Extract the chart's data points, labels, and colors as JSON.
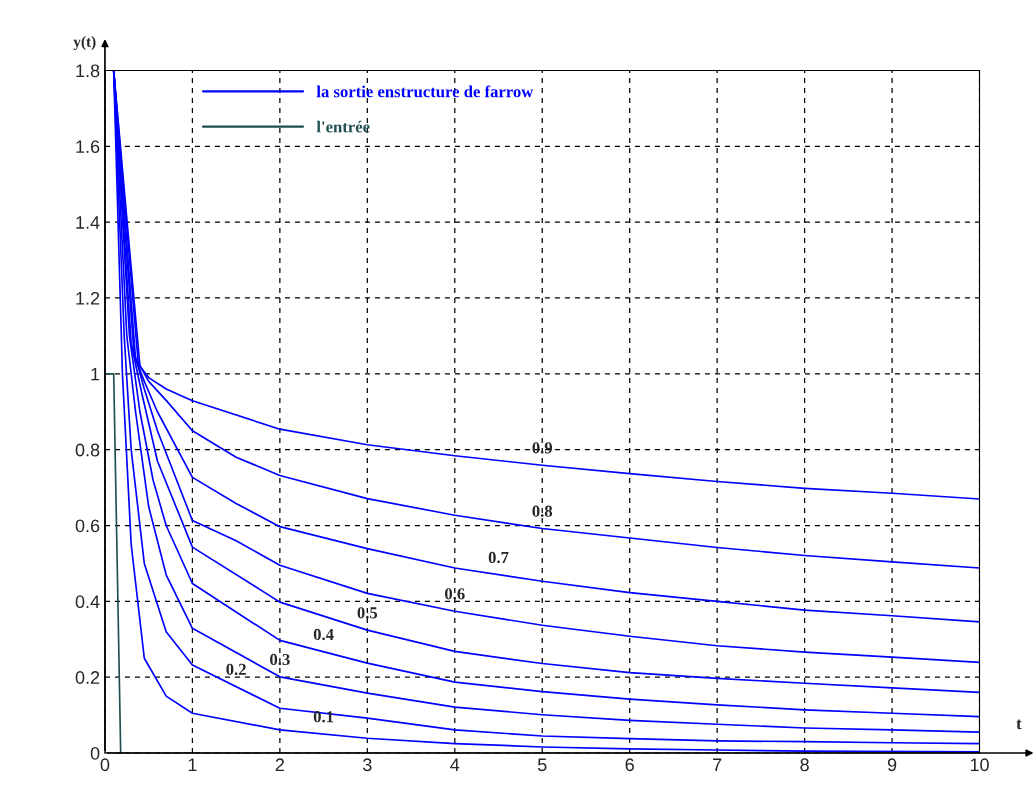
{
  "chart_data": {
    "type": "line",
    "xlabel": "t",
    "ylabel": "y(t)",
    "xlim": [
      0,
      10
    ],
    "ylim": [
      0,
      1.8
    ],
    "xticks": [
      0,
      1,
      2,
      3,
      4,
      5,
      6,
      7,
      8,
      9,
      10
    ],
    "yticks": [
      0,
      0.2,
      0.4,
      0.6,
      0.8,
      1,
      1.2,
      1.4,
      1.6,
      1.8
    ],
    "grid": true,
    "line_style": "solid",
    "legend": "top left",
    "series": [
      {
        "name": "la sortie enstructure de farrow",
        "color": "#0000ff",
        "x": [
          0.1,
          0.4,
          0.5,
          0.7,
          1,
          2,
          3,
          4,
          5,
          6,
          7,
          8,
          9,
          10
        ],
        "values": [
          1.8,
          1.02,
          0.99,
          0.96,
          0.929,
          0.854,
          0.813,
          0.784,
          0.759,
          0.737,
          0.716,
          0.698,
          0.685,
          0.67
        ]
      },
      {
        "color": "#0000ff",
        "x": [
          0.1,
          0.38,
          0.5,
          0.7,
          1,
          1.5,
          2,
          3,
          4,
          5,
          6,
          7,
          8,
          9,
          10
        ],
        "values": [
          1.8,
          1.03,
          0.98,
          0.93,
          0.85,
          0.78,
          0.732,
          0.671,
          0.627,
          0.592,
          0.567,
          0.542,
          0.521,
          0.504,
          0.488
        ]
      },
      {
        "color": "#0000ff",
        "x": [
          0.1,
          0.35,
          0.45,
          0.6,
          1,
          1.5,
          2,
          3,
          4,
          5,
          6,
          7,
          8,
          9,
          10
        ],
        "values": [
          1.8,
          1.04,
          0.98,
          0.9,
          0.727,
          0.658,
          0.597,
          0.539,
          0.488,
          0.453,
          0.423,
          0.4,
          0.377,
          0.362,
          0.346
        ]
      },
      {
        "color": "#0000ff",
        "x": [
          0.1,
          0.33,
          0.45,
          0.6,
          1,
          1.5,
          2,
          3,
          4,
          5,
          6,
          7,
          8,
          9,
          10
        ],
        "values": [
          1.8,
          1.06,
          0.96,
          0.85,
          0.613,
          0.56,
          0.495,
          0.421,
          0.374,
          0.337,
          0.308,
          0.283,
          0.266,
          0.253,
          0.239
        ]
      },
      {
        "color": "#0000ff",
        "x": [
          0.1,
          0.3,
          0.42,
          0.6,
          1,
          2,
          3,
          4,
          5,
          6,
          7,
          8,
          9,
          10
        ],
        "values": [
          1.8,
          1.08,
          0.95,
          0.77,
          0.543,
          0.398,
          0.324,
          0.268,
          0.236,
          0.212,
          0.197,
          0.184,
          0.172,
          0.16
        ]
      },
      {
        "color": "#0000ff",
        "x": [
          0.1,
          0.28,
          0.4,
          0.55,
          0.7,
          1,
          2,
          3,
          4,
          5,
          6,
          7,
          8,
          9,
          10
        ],
        "values": [
          1.8,
          1.1,
          0.9,
          0.72,
          0.6,
          0.447,
          0.297,
          0.237,
          0.187,
          0.162,
          0.142,
          0.127,
          0.114,
          0.105,
          0.096
        ]
      },
      {
        "color": "#0000ff",
        "x": [
          0.1,
          0.25,
          0.35,
          0.5,
          0.7,
          1,
          2,
          3,
          4,
          5,
          6,
          7,
          8,
          9,
          10
        ],
        "values": [
          1.8,
          1.1,
          0.9,
          0.65,
          0.47,
          0.329,
          0.201,
          0.158,
          0.121,
          0.101,
          0.086,
          0.076,
          0.066,
          0.061,
          0.055
        ]
      },
      {
        "color": "#0000ff",
        "x": [
          0.1,
          0.22,
          0.3,
          0.45,
          0.7,
          1,
          2,
          3,
          4,
          5,
          6,
          7,
          8,
          9,
          10
        ],
        "values": [
          1.8,
          1.1,
          0.8,
          0.5,
          0.32,
          0.232,
          0.118,
          0.092,
          0.061,
          0.045,
          0.038,
          0.032,
          0.03,
          0.027,
          0.025
        ]
      },
      {
        "color": "#0000ff",
        "x": [
          0.1,
          0.2,
          0.3,
          0.45,
          0.7,
          1,
          2,
          3,
          4,
          5,
          6,
          7,
          8,
          10
        ],
        "values": [
          1.8,
          1.0,
          0.55,
          0.25,
          0.15,
          0.105,
          0.061,
          0.039,
          0.025,
          0.016,
          0.011,
          0.008,
          0.005,
          0.003
        ]
      },
      {
        "name": "l'entrée",
        "color": "#1f4f4f",
        "x": [
          0.02,
          0.1,
          0.18
        ],
        "values": [
          1,
          1,
          0
        ]
      }
    ],
    "annotations": [
      {
        "text": "0.9",
        "x": 5,
        "y": 0.759
      },
      {
        "text": "0.8",
        "x": 5,
        "y": 0.592
      },
      {
        "text": "0.7",
        "x": 4.5,
        "y": 0.47
      },
      {
        "text": "0.6",
        "x": 4,
        "y": 0.374
      },
      {
        "text": "0.5",
        "x": 3,
        "y": 0.324
      },
      {
        "text": "0.4",
        "x": 2.5,
        "y": 0.267
      },
      {
        "text": "0.3",
        "x": 2,
        "y": 0.201
      },
      {
        "text": "0.2",
        "x": 1.5,
        "y": 0.175
      },
      {
        "text": "0.1",
        "x": 2.5,
        "y": 0.05
      }
    ]
  }
}
